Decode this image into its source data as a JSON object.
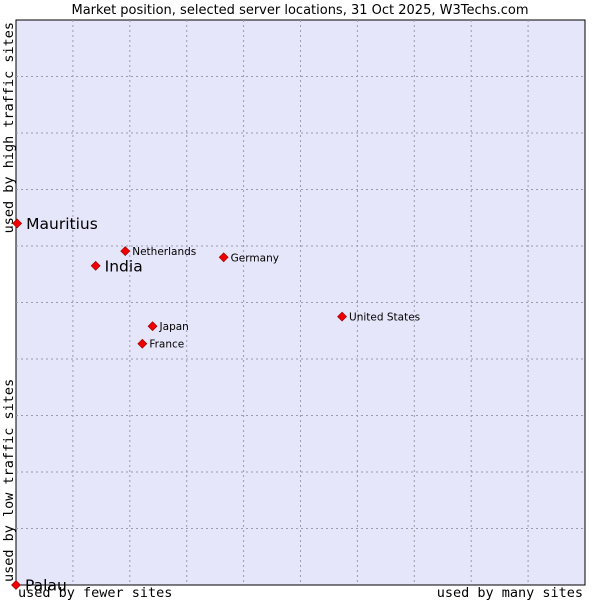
{
  "chart_data": {
    "type": "scatter",
    "title": "Market position, selected server locations, 31 Oct 2025, W3Techs.com",
    "xlabel_low": "used by fewer sites",
    "xlabel_high": "used by many sites",
    "ylabel_low": "used by low traffic sites",
    "ylabel_high": "used by high traffic sites",
    "xlim": [
      0,
      100
    ],
    "ylim": [
      0,
      100
    ],
    "grid": true,
    "plot_background": "#e6e6fa",
    "point_color": "#ee0000",
    "points": [
      {
        "name": "Mauritius",
        "x": 0.2,
        "y": 64.0,
        "emphasis": true
      },
      {
        "name": "India",
        "x": 14.0,
        "y": 56.5,
        "emphasis": true
      },
      {
        "name": "Netherlands",
        "x": 19.2,
        "y": 59.1,
        "emphasis": false
      },
      {
        "name": "Germany",
        "x": 36.5,
        "y": 58.0,
        "emphasis": false
      },
      {
        "name": "United States",
        "x": 57.3,
        "y": 47.5,
        "emphasis": false
      },
      {
        "name": "Japan",
        "x": 24.0,
        "y": 45.8,
        "emphasis": false
      },
      {
        "name": "France",
        "x": 22.2,
        "y": 42.7,
        "emphasis": false
      },
      {
        "name": "Palau",
        "x": 0.0,
        "y": 0.0,
        "emphasis": true
      }
    ]
  }
}
